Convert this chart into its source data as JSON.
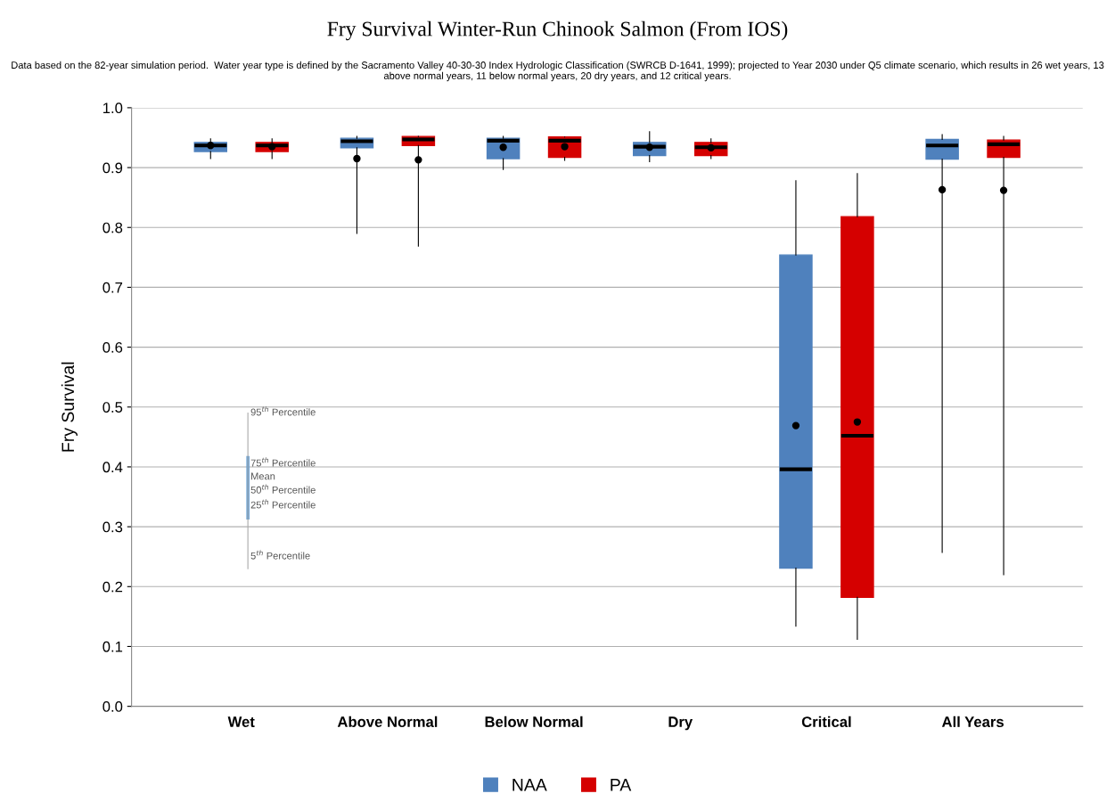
{
  "chart_data": {
    "type": "box",
    "title": "Fry Survival Winter-Run Chinook Salmon (From IOS)",
    "subtitle": "Data based on the 82-year simulation period.  Water year type is defined by the Sacramento Valley 40-30-30 Index Hydrologic Classification (SWRCB D-1641, 1999); projected to Year 2030 under Q5 climate scenario, which results in 26 wet years, 13 above normal years, 11 below normal years, 20 dry years, and 12 critical years.",
    "ylabel": "Fry Survival",
    "categories": [
      "Wet",
      "Above Normal",
      "Below Normal",
      "Dry",
      "Critical",
      "All Years"
    ],
    "series": [
      {
        "name": "NAA",
        "color": "#4f81bd",
        "boxes": [
          {
            "low": 0.915,
            "q1": 0.927,
            "median": 0.937,
            "q3": 0.942,
            "high": 0.948,
            "mean": 0.937
          },
          {
            "low": 0.79,
            "q1": 0.933,
            "median": 0.944,
            "q3": 0.949,
            "high": 0.952,
            "mean": 0.915
          },
          {
            "low": 0.897,
            "q1": 0.915,
            "median": 0.945,
            "q3": 0.949,
            "high": 0.952,
            "mean": 0.934
          },
          {
            "low": 0.91,
            "q1": 0.92,
            "median": 0.935,
            "q3": 0.942,
            "high": 0.96,
            "mean": 0.934
          },
          {
            "low": 0.134,
            "q1": 0.231,
            "median": 0.396,
            "q3": 0.754,
            "high": 0.878,
            "mean": 0.469
          },
          {
            "low": 0.257,
            "q1": 0.914,
            "median": 0.937,
            "q3": 0.947,
            "high": 0.955,
            "mean": 0.863
          }
        ]
      },
      {
        "name": "PA",
        "color": "#d50000",
        "boxes": [
          {
            "low": 0.915,
            "q1": 0.927,
            "median": 0.937,
            "q3": 0.942,
            "high": 0.948,
            "mean": 0.935
          },
          {
            "low": 0.769,
            "q1": 0.937,
            "median": 0.947,
            "q3": 0.952,
            "high": 0.952,
            "mean": 0.913
          },
          {
            "low": 0.912,
            "q1": 0.917,
            "median": 0.945,
            "q3": 0.951,
            "high": 0.951,
            "mean": 0.935
          },
          {
            "low": 0.915,
            "q1": 0.92,
            "median": 0.934,
            "q3": 0.942,
            "high": 0.948,
            "mean": 0.933
          },
          {
            "low": 0.112,
            "q1": 0.182,
            "median": 0.452,
            "q3": 0.818,
            "high": 0.89,
            "mean": 0.475
          },
          {
            "low": 0.22,
            "q1": 0.917,
            "median": 0.939,
            "q3": 0.946,
            "high": 0.952,
            "mean": 0.862
          }
        ]
      }
    ],
    "ylim": [
      0,
      1
    ],
    "yticks": [
      {
        "value": 0,
        "label": "0.0"
      },
      {
        "value": 0.1,
        "label": "0.1"
      },
      {
        "value": 0.2,
        "label": "0.2"
      },
      {
        "value": 0.3,
        "label": "0.3"
      },
      {
        "value": 0.4,
        "label": "0.4"
      },
      {
        "value": 0.5,
        "label": "0.5"
      },
      {
        "value": 0.6,
        "label": "0.6"
      },
      {
        "value": 0.7,
        "label": "0.7"
      },
      {
        "value": 0.8,
        "label": "0.8"
      },
      {
        "value": 0.9,
        "label": "0.9"
      },
      {
        "value": 1,
        "label": "1.0"
      }
    ],
    "grid": "y",
    "legend": "bottom",
    "annotations": [
      "95$^{th}$ Percentile",
      "75$^{th}$ Percentile",
      "Mean",
      "50$^{th}$ Percentile",
      "25$^{th}$ Percentile",
      "5$^{th}$ Percentile"
    ]
  }
}
